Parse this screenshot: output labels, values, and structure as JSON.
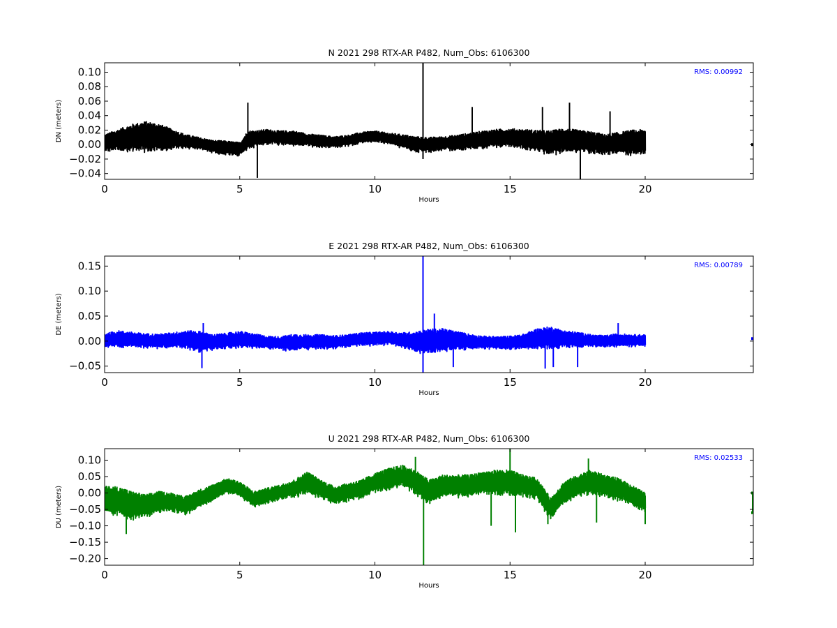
{
  "chart_data": [
    {
      "type": "line",
      "title": "N 2021 298 RTX-AR  P482, Num_Obs: 6106300",
      "xlabel": "Hours",
      "ylabel": "DN (meters)",
      "xlim": [
        0,
        24
      ],
      "ylim": [
        -0.048,
        0.113
      ],
      "xticks": [
        0,
        5,
        10,
        15,
        20
      ],
      "yticks": [
        -0.04,
        -0.02,
        0.0,
        0.02,
        0.04,
        0.06,
        0.08,
        0.1
      ],
      "ytick_labels": [
        "−0.04",
        "−0.02",
        "0.00",
        "0.02",
        "0.04",
        "0.06",
        "0.08",
        "0.10"
      ],
      "annotation": "RMS:  0.00992",
      "color": "#000000",
      "series": [
        {
          "x": [
            0,
            0.5,
            1,
            1.5,
            2,
            2.5,
            3,
            3.5,
            4,
            4.5,
            5,
            5.3,
            5.7,
            6,
            6.5,
            7,
            7.5,
            8,
            8.5,
            9,
            9.5,
            10,
            10.5,
            11,
            11.5,
            12,
            12.5,
            13,
            13.5,
            14,
            14.5,
            15,
            15.5,
            16,
            16.5,
            17,
            17.5,
            18,
            18.5,
            19,
            19.5,
            20
          ],
          "center": [
            0.002,
            0.005,
            0.008,
            0.01,
            0.009,
            0.006,
            0.004,
            0.001,
            -0.003,
            -0.005,
            -0.007,
            0.005,
            0.008,
            0.01,
            0.009,
            0.008,
            0.006,
            0.004,
            0.003,
            0.005,
            0.009,
            0.011,
            0.008,
            0.004,
            0.0,
            -0.001,
            0.001,
            0.002,
            0.004,
            0.006,
            0.008,
            0.009,
            0.007,
            0.004,
            0.002,
            0.005,
            0.004,
            0.002,
            0.0,
            0.001,
            0.002,
            0.003
          ],
          "halfwidth": [
            0.012,
            0.016,
            0.02,
            0.022,
            0.02,
            0.015,
            0.01,
            0.009,
            0.009,
            0.01,
            0.01,
            0.014,
            0.012,
            0.011,
            0.01,
            0.011,
            0.009,
            0.009,
            0.008,
            0.008,
            0.008,
            0.008,
            0.008,
            0.01,
            0.011,
            0.011,
            0.01,
            0.011,
            0.012,
            0.013,
            0.013,
            0.013,
            0.014,
            0.016,
            0.017,
            0.018,
            0.016,
            0.016,
            0.014,
            0.016,
            0.018,
            0.018
          ]
        }
      ],
      "spikes": [
        [
          5.3,
          0.058
        ],
        [
          5.65,
          -0.046
        ],
        [
          11.78,
          0.113
        ],
        [
          11.78,
          -0.02
        ],
        [
          13.6,
          0.052
        ],
        [
          16.2,
          0.052
        ],
        [
          17.2,
          0.058
        ],
        [
          17.6,
          -0.048
        ],
        [
          18.7,
          0.046
        ]
      ],
      "tail": [
        [
          24,
          0.0
        ]
      ]
    },
    {
      "type": "line",
      "title": "E 2021 298 RTX-AR  P482, Num_Obs: 6106300",
      "xlabel": "Hours",
      "ylabel": "DE (meters)",
      "xlim": [
        0,
        24
      ],
      "ylim": [
        -0.063,
        0.17
      ],
      "xticks": [
        0,
        5,
        10,
        15,
        20
      ],
      "yticks": [
        -0.05,
        0.0,
        0.05,
        0.1,
        0.15
      ],
      "ytick_labels": [
        "−0.05",
        "0.00",
        "0.05",
        "0.10",
        "0.15"
      ],
      "annotation": "RMS:  0.00789",
      "color": "#0000ff",
      "series": [
        {
          "x": [
            0,
            0.5,
            1,
            1.5,
            2,
            2.5,
            3,
            3.5,
            4,
            4.5,
            5,
            5.5,
            6,
            6.5,
            7,
            7.5,
            8,
            8.5,
            9,
            9.5,
            10,
            10.5,
            11,
            11.5,
            12,
            12.5,
            13,
            13.5,
            14,
            14.5,
            15,
            15.5,
            16,
            16.5,
            17,
            17.5,
            18,
            18.5,
            19,
            19.5,
            20
          ],
          "center": [
            0.0,
            0.003,
            0.002,
            0.0,
            -0.001,
            0.001,
            0.002,
            -0.002,
            -0.003,
            0.0,
            0.002,
            0.0,
            -0.003,
            -0.005,
            -0.004,
            -0.003,
            -0.002,
            -0.003,
            0.0,
            0.003,
            0.004,
            0.005,
            0.001,
            -0.003,
            -0.002,
            0.001,
            0.0,
            -0.002,
            -0.003,
            -0.004,
            -0.004,
            -0.002,
            0.003,
            0.005,
            0.003,
            0.002,
            0.0,
            -0.001,
            0.001,
            0.0,
            0.001
          ],
          "halfwidth": [
            0.015,
            0.018,
            0.016,
            0.015,
            0.015,
            0.016,
            0.019,
            0.022,
            0.016,
            0.016,
            0.018,
            0.015,
            0.013,
            0.014,
            0.018,
            0.016,
            0.015,
            0.014,
            0.013,
            0.014,
            0.014,
            0.014,
            0.016,
            0.022,
            0.026,
            0.024,
            0.02,
            0.016,
            0.013,
            0.013,
            0.014,
            0.016,
            0.022,
            0.024,
            0.018,
            0.016,
            0.013,
            0.012,
            0.014,
            0.013,
            0.012
          ]
        }
      ],
      "spikes": [
        [
          3.6,
          -0.054
        ],
        [
          3.65,
          0.036
        ],
        [
          11.78,
          0.17
        ],
        [
          11.78,
          -0.063
        ],
        [
          12.2,
          0.055
        ],
        [
          12.9,
          -0.052
        ],
        [
          16.3,
          -0.055
        ],
        [
          16.6,
          -0.052
        ],
        [
          17.5,
          -0.052
        ],
        [
          19.0,
          0.036
        ]
      ],
      "tail": [
        [
          24,
          0.005
        ]
      ]
    },
    {
      "type": "line",
      "title": "U 2021 298 RTX-AR  P482, Num_Obs: 6106300",
      "xlabel": "Hours",
      "ylabel": "DU (meters)",
      "xlim": [
        0,
        24
      ],
      "ylim": [
        -0.22,
        0.135
      ],
      "xticks": [
        0,
        5,
        10,
        15,
        20
      ],
      "yticks": [
        -0.2,
        -0.15,
        -0.1,
        -0.05,
        0.0,
        0.05,
        0.1
      ],
      "ytick_labels": [
        "−0.20",
        "−0.15",
        "−0.10",
        "−0.05",
        "0.00",
        "0.05",
        "0.10"
      ],
      "annotation": "RMS:  0.02533",
      "color": "#008000",
      "series": [
        {
          "x": [
            0,
            0.5,
            1,
            1.5,
            2,
            2.5,
            3,
            3.5,
            4,
            4.5,
            5,
            5.5,
            6,
            6.5,
            7,
            7.5,
            8,
            8.5,
            9,
            9.5,
            10,
            10.5,
            11,
            11.5,
            12,
            12.5,
            13,
            13.5,
            14,
            14.5,
            15,
            15.5,
            16,
            16.5,
            17,
            17.5,
            18,
            18.5,
            19,
            19.5,
            20
          ],
          "center": [
            -0.02,
            -0.03,
            -0.04,
            -0.04,
            -0.03,
            -0.03,
            -0.04,
            -0.02,
            0.0,
            0.02,
            0.01,
            -0.02,
            -0.01,
            0.0,
            0.01,
            0.03,
            0.01,
            -0.01,
            0.0,
            0.01,
            0.03,
            0.04,
            0.05,
            0.03,
            0.0,
            0.02,
            0.02,
            0.02,
            0.03,
            0.03,
            0.03,
            0.02,
            0.01,
            -0.05,
            0.0,
            0.02,
            0.03,
            0.02,
            0.01,
            -0.01,
            -0.03
          ],
          "halfwidth": [
            0.04,
            0.05,
            0.045,
            0.035,
            0.035,
            0.03,
            0.03,
            0.03,
            0.025,
            0.025,
            0.025,
            0.025,
            0.025,
            0.025,
            0.03,
            0.035,
            0.03,
            0.03,
            0.03,
            0.03,
            0.03,
            0.035,
            0.035,
            0.04,
            0.04,
            0.035,
            0.035,
            0.035,
            0.035,
            0.04,
            0.04,
            0.035,
            0.035,
            0.035,
            0.035,
            0.035,
            0.04,
            0.035,
            0.035,
            0.035,
            0.03
          ]
        }
      ],
      "spikes": [
        [
          0.8,
          -0.125
        ],
        [
          11.5,
          0.11
        ],
        [
          11.8,
          -0.22
        ],
        [
          15.0,
          0.135
        ],
        [
          14.3,
          -0.1
        ],
        [
          15.2,
          -0.12
        ],
        [
          16.4,
          -0.095
        ],
        [
          17.9,
          0.105
        ],
        [
          18.2,
          -0.09
        ],
        [
          20.0,
          -0.095
        ]
      ],
      "tail": [
        [
          24,
          0.0
        ],
        [
          24,
          -0.06
        ]
      ]
    }
  ]
}
